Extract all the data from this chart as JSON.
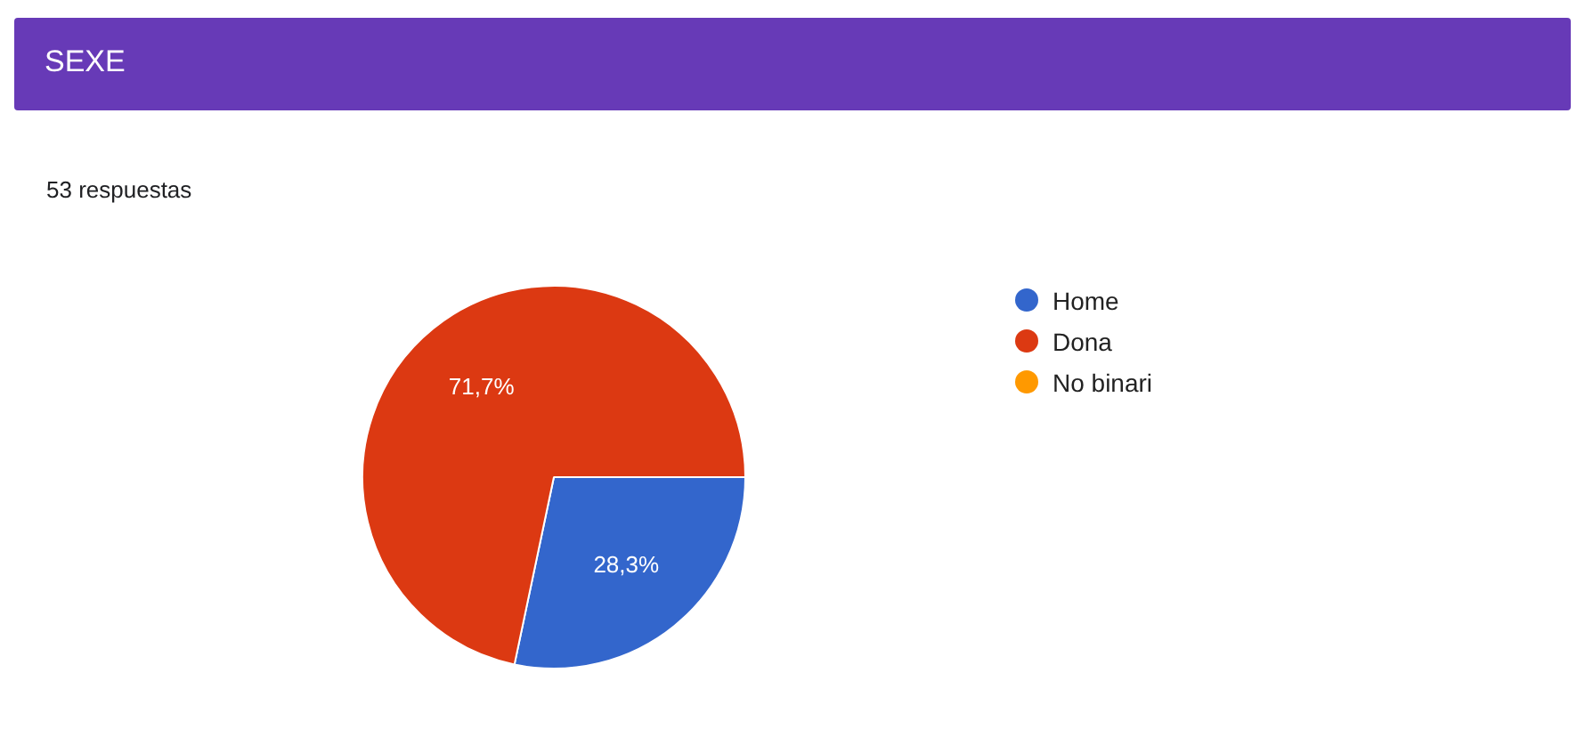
{
  "chart_data": {
    "type": "pie",
    "title": "SEXE",
    "subtitle": "53 respuestas",
    "categories": [
      "Home",
      "Dona",
      "No binari"
    ],
    "values": [
      28.3,
      71.7,
      0
    ],
    "colors": [
      "#3366cc",
      "#dc3912",
      "#ff9900"
    ],
    "value_labels": [
      "28,3%",
      "71,7%",
      null
    ],
    "legend": "right"
  }
}
